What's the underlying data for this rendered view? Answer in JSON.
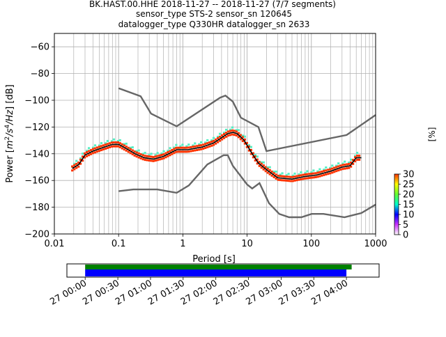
{
  "chart_data": [
    {
      "type": "line",
      "title_lines": [
        "BK.HAST.00.HHE   2018-11-27 -- 2018-11-27  (7/7 segments)",
        "sensor_type STS-2 sensor_sn 120645",
        "datalogger_type Q330HR datalogger_sn 2633"
      ],
      "xlabel": "Period [s]",
      "ylabel_parts": [
        "Power [",
        "m",
        "2",
        "/s",
        "4",
        "/Hz",
        "] [dB]"
      ],
      "x_scale": "log",
      "xlim": [
        0.01,
        1000
      ],
      "ylim": [
        -200,
        -50
      ],
      "x_ticks": [
        {
          "value": 0.01,
          "label": "0.01"
        },
        {
          "value": 0.1,
          "label": "0.1"
        },
        {
          "value": 1,
          "label": "1"
        },
        {
          "value": 10,
          "label": "10"
        },
        {
          "value": 100,
          "label": "100"
        },
        {
          "value": 1000,
          "label": "1000"
        }
      ],
      "y_ticks": [
        {
          "value": -60,
          "label": "−60"
        },
        {
          "value": -80,
          "label": "−80"
        },
        {
          "value": -100,
          "label": "−100"
        },
        {
          "value": -120,
          "label": "−120"
        },
        {
          "value": -140,
          "label": "−140"
        },
        {
          "value": -160,
          "label": "−160"
        },
        {
          "value": -180,
          "label": "−180"
        },
        {
          "value": -200,
          "label": "−200"
        }
      ],
      "grid": true,
      "noise_models": {
        "color": "#666666",
        "high_noise_model": [
          [
            0.1,
            -91
          ],
          [
            0.22,
            -97
          ],
          [
            0.32,
            -110
          ],
          [
            0.8,
            -119.5
          ],
          [
            3.8,
            -98
          ],
          [
            4.6,
            -96.5
          ],
          [
            6.0,
            -101
          ],
          [
            8.0,
            -113
          ],
          [
            15,
            -120
          ],
          [
            20,
            -138
          ],
          [
            354,
            -126
          ],
          [
            1000,
            -111
          ]
        ],
        "low_noise_model": [
          [
            0.1,
            -168
          ],
          [
            0.17,
            -166.7
          ],
          [
            0.4,
            -166.7
          ],
          [
            0.8,
            -169.2
          ],
          [
            1.24,
            -163.7
          ],
          [
            2.4,
            -148
          ],
          [
            4.3,
            -141.1
          ],
          [
            5.0,
            -141.1
          ],
          [
            6.0,
            -149
          ],
          [
            10,
            -163
          ],
          [
            12,
            -166
          ],
          [
            15.6,
            -162
          ],
          [
            21.9,
            -177
          ],
          [
            31.6,
            -185
          ],
          [
            45,
            -187.5
          ],
          [
            70,
            -187.5
          ],
          [
            101,
            -185
          ],
          [
            154,
            -185
          ],
          [
            328,
            -187.5
          ],
          [
            600,
            -184.4
          ],
          [
            1000,
            -178
          ]
        ]
      },
      "series": [
        {
          "stroke": "#000000",
          "values": [
            [
              0.019,
              -151
            ],
            [
              0.024,
              -148
            ],
            [
              0.03,
              -141
            ],
            [
              0.04,
              -138
            ],
            [
              0.06,
              -135
            ],
            [
              0.08,
              -133
            ],
            [
              0.1,
              -133
            ],
            [
              0.13,
              -136
            ],
            [
              0.18,
              -140
            ],
            [
              0.25,
              -143
            ],
            [
              0.35,
              -144
            ],
            [
              0.5,
              -142
            ],
            [
              0.8,
              -137
            ],
            [
              1.2,
              -137
            ],
            [
              2,
              -135
            ],
            [
              3,
              -132
            ],
            [
              4,
              -128
            ],
            [
              5,
              -125
            ],
            [
              6,
              -124
            ],
            [
              7,
              -125
            ],
            [
              9,
              -130
            ],
            [
              12,
              -140
            ],
            [
              15,
              -147
            ],
            [
              20,
              -152
            ],
            [
              30,
              -158
            ],
            [
              50,
              -159
            ],
            [
              80,
              -157
            ],
            [
              120,
              -156
            ],
            [
              200,
              -153
            ],
            [
              300,
              -150
            ],
            [
              400,
              -149
            ],
            [
              500,
              -143
            ],
            [
              600,
              -143
            ]
          ]
        }
      ],
      "density_bands": [
        {
          "color": "#ff3300",
          "offset": -1.5
        },
        {
          "color": "#55efc4",
          "offset": 2.5
        },
        {
          "color": "#ff3300",
          "offset": 1.5
        }
      ],
      "colorbar": {
        "label": "[%]",
        "range": [
          0,
          30
        ],
        "ticks": [
          {
            "value": 0,
            "label": "0"
          },
          {
            "value": 5,
            "label": "5"
          },
          {
            "value": 10,
            "label": "10"
          },
          {
            "value": 15,
            "label": "15"
          },
          {
            "value": 20,
            "label": "20"
          },
          {
            "value": 25,
            "label": "25"
          },
          {
            "value": 30,
            "label": "30"
          }
        ],
        "colors": [
          "#ffffff",
          "#cc33ff",
          "#0000ff",
          "#00ffcc",
          "#66ff33",
          "#ffff00",
          "#ff3300"
        ]
      }
    },
    {
      "type": "timeline",
      "xlim_hours": [
        -0.28,
        4.5
      ],
      "x_ticks": [
        {
          "value": 0,
          "label": "27 00:00"
        },
        {
          "value": 0.5,
          "label": "27 00:30"
        },
        {
          "value": 1.0,
          "label": "27 01:00"
        },
        {
          "value": 1.5,
          "label": "27 01:30"
        },
        {
          "value": 2.0,
          "label": "27 02:00"
        },
        {
          "value": 2.5,
          "label": "27 02:30"
        },
        {
          "value": 3.0,
          "label": "27 03:00"
        },
        {
          "value": 3.5,
          "label": "27 03:30"
        },
        {
          "value": 4.0,
          "label": "27 04:00"
        }
      ],
      "bars": [
        {
          "color": "#008000",
          "start": 0,
          "end": 4.08
        },
        {
          "color": "#0000ff",
          "start": 0,
          "end": 4.0
        }
      ]
    }
  ]
}
